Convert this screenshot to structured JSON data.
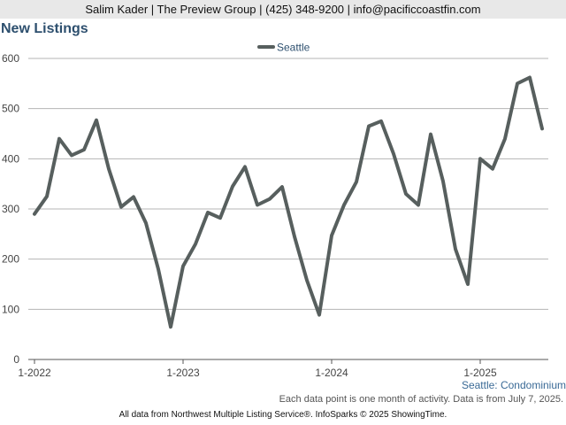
{
  "header": {
    "contact": "Salim Kader | The Preview Group | (425) 348-9200 | info@pacificcoastfin.com"
  },
  "chart_data": {
    "type": "line",
    "title": "New Listings",
    "subset_label": "Seattle: Condominium",
    "note": "Each data point is one month of activity. Data is from July 7, 2025.",
    "source": "All data from Northwest Multiple Listing Service®. InfoSparks © 2025 ShowingTime.",
    "legend": {
      "position": "top-center"
    },
    "x_tick_labels": [
      "1-2022",
      "1-2023",
      "1-2024",
      "1-2025"
    ],
    "y_ticks": [
      0,
      100,
      200,
      300,
      400,
      500,
      600
    ],
    "ylim": [
      0,
      600
    ],
    "grid": true,
    "series_color": "#575f5e",
    "series": [
      {
        "name": "Seattle",
        "x": [
          "2022-01",
          "2022-02",
          "2022-03",
          "2022-04",
          "2022-05",
          "2022-06",
          "2022-07",
          "2022-08",
          "2022-09",
          "2022-10",
          "2022-11",
          "2022-12",
          "2023-01",
          "2023-02",
          "2023-03",
          "2023-04",
          "2023-05",
          "2023-06",
          "2023-07",
          "2023-08",
          "2023-09",
          "2023-10",
          "2023-11",
          "2023-12",
          "2024-01",
          "2024-02",
          "2024-03",
          "2024-04",
          "2024-05",
          "2024-06",
          "2024-07",
          "2024-08",
          "2024-09",
          "2024-10",
          "2024-11",
          "2024-12",
          "2025-01",
          "2025-02",
          "2025-03",
          "2025-04",
          "2025-05",
          "2025-06"
        ],
        "values": [
          290,
          325,
          440,
          407,
          418,
          477,
          380,
          304,
          324,
          272,
          180,
          65,
          186,
          230,
          293,
          282,
          345,
          384,
          308,
          320,
          344,
          245,
          158,
          89,
          247,
          308,
          354,
          465,
          475,
          410,
          330,
          308,
          449,
          355,
          220,
          150,
          400,
          380,
          440,
          550,
          562,
          460
        ]
      }
    ]
  }
}
